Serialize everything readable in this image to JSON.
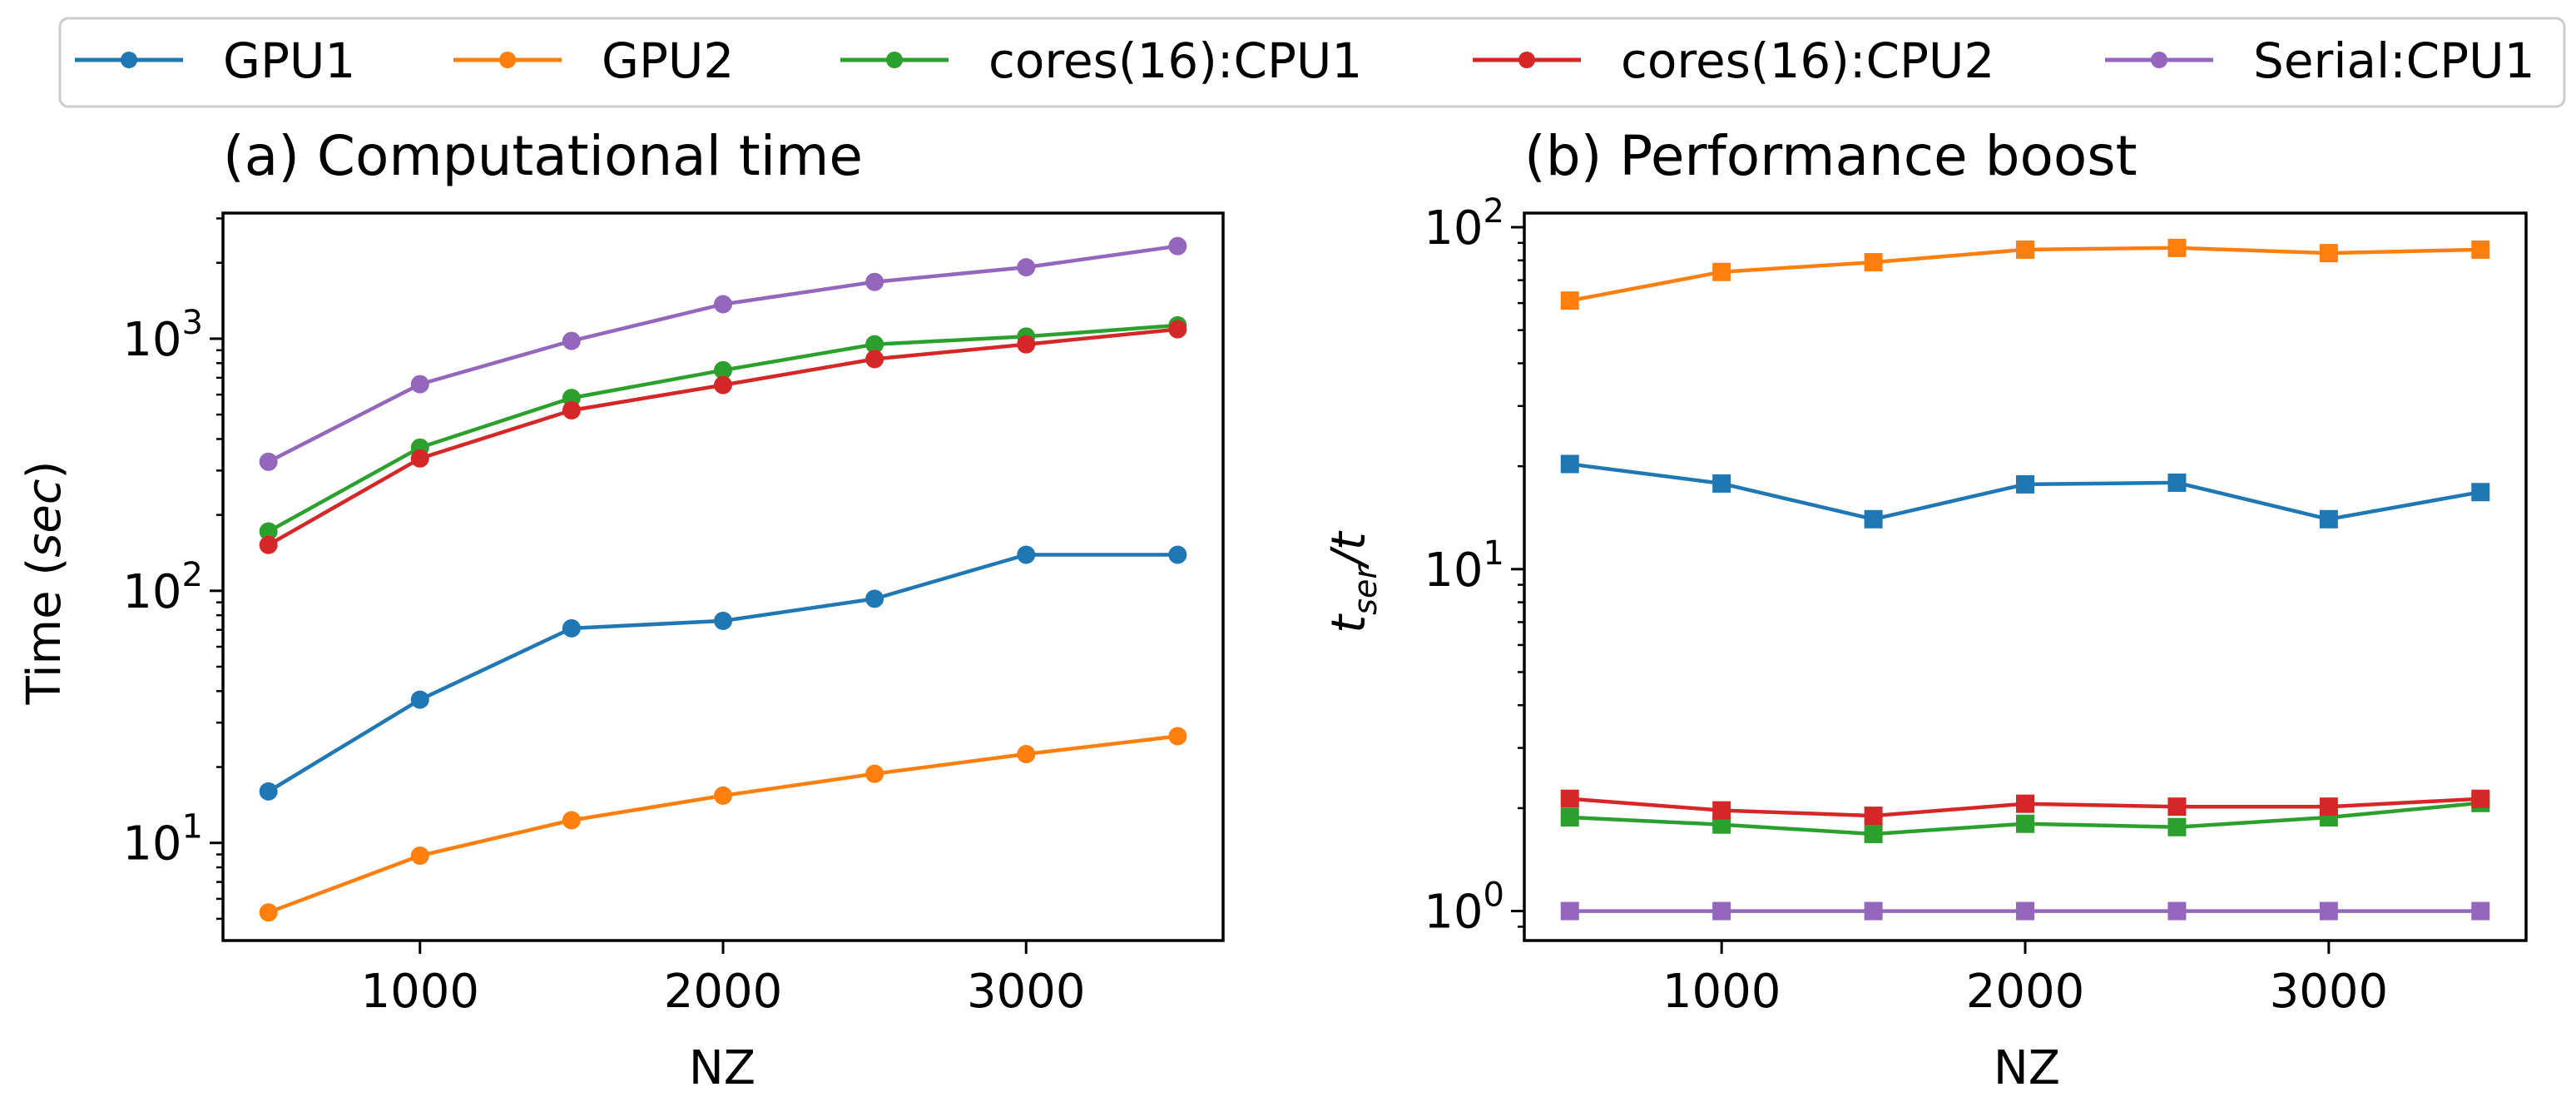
{
  "legend": [
    {
      "label": "GPU1",
      "color": "#1f77b4"
    },
    {
      "label": "GPU2",
      "color": "#ff7f0e"
    },
    {
      "label": "cores(16):CPU1",
      "color": "#2ca02c"
    },
    {
      "label": "cores(16):CPU2",
      "color": "#d62728"
    },
    {
      "label": "Serial:CPU1",
      "color": "#9467bd"
    }
  ],
  "chart_data": [
    {
      "type": "line",
      "title": "(a) Computational time",
      "xlabel": "NZ",
      "ylabel_prefix": "Time (",
      "ylabel_var": "sec",
      "ylabel_suffix": ")",
      "yscale": "log",
      "marker": "circle",
      "xlim": [
        350,
        3650
      ],
      "ylim": [
        4.1,
        3150
      ],
      "xticks": [
        1000,
        2000,
        3000
      ],
      "xtick_labels": [
        "1000",
        "2000",
        "3000"
      ],
      "yticks": [
        {
          "base": "10",
          "exp": "1",
          "value": 10
        },
        {
          "base": "10",
          "exp": "2",
          "value": 100
        },
        {
          "base": "10",
          "exp": "3",
          "value": 1000
        }
      ],
      "x": [
        500,
        1000,
        1500,
        2000,
        2500,
        3000,
        3500
      ],
      "series": [
        {
          "name": "GPU1",
          "values": [
            16,
            37,
            71,
            76,
            93,
            139,
            139
          ]
        },
        {
          "name": "GPU2",
          "values": [
            5.3,
            8.9,
            12.3,
            15.4,
            18.8,
            22.5,
            26.5
          ]
        },
        {
          "name": "cores(16):CPU1",
          "values": [
            172,
            370,
            582,
            750,
            950,
            1020,
            1130
          ]
        },
        {
          "name": "cores(16):CPU2",
          "values": [
            152,
            335,
            520,
            655,
            830,
            950,
            1090
          ]
        },
        {
          "name": "Serial:CPU1",
          "values": [
            325,
            660,
            980,
            1370,
            1680,
            1920,
            2330
          ]
        }
      ]
    },
    {
      "type": "line",
      "title": "(b) Performance boost",
      "xlabel": "NZ",
      "ylabel_base": "t",
      "ylabel_sub": "ser",
      "ylabel_tail": "/t",
      "yscale": "log",
      "marker": "square",
      "xlim": [
        350,
        3650
      ],
      "ylim": [
        0.82,
        110
      ],
      "xticks": [
        1000,
        2000,
        3000
      ],
      "xtick_labels": [
        "1000",
        "2000",
        "3000"
      ],
      "yticks": [
        {
          "base": "10",
          "exp": "0",
          "value": 1
        },
        {
          "base": "10",
          "exp": "1",
          "value": 10
        },
        {
          "base": "10",
          "exp": "2",
          "value": 100
        }
      ],
      "x": [
        500,
        1000,
        1500,
        2000,
        2500,
        3000,
        3500
      ],
      "series": [
        {
          "name": "GPU1",
          "values": [
            20.3,
            17.8,
            14.0,
            17.7,
            17.9,
            14.0,
            16.8
          ]
        },
        {
          "name": "GPU2",
          "values": [
            61,
            74,
            79,
            86,
            87,
            84,
            86
          ]
        },
        {
          "name": "cores(16):CPU1",
          "values": [
            1.88,
            1.79,
            1.68,
            1.8,
            1.76,
            1.88,
            2.07
          ]
        },
        {
          "name": "cores(16):CPU2",
          "values": [
            2.13,
            1.97,
            1.9,
            2.06,
            2.02,
            2.02,
            2.13
          ]
        },
        {
          "name": "Serial:CPU1",
          "values": [
            1,
            1,
            1,
            1,
            1,
            1,
            1
          ]
        }
      ]
    }
  ]
}
